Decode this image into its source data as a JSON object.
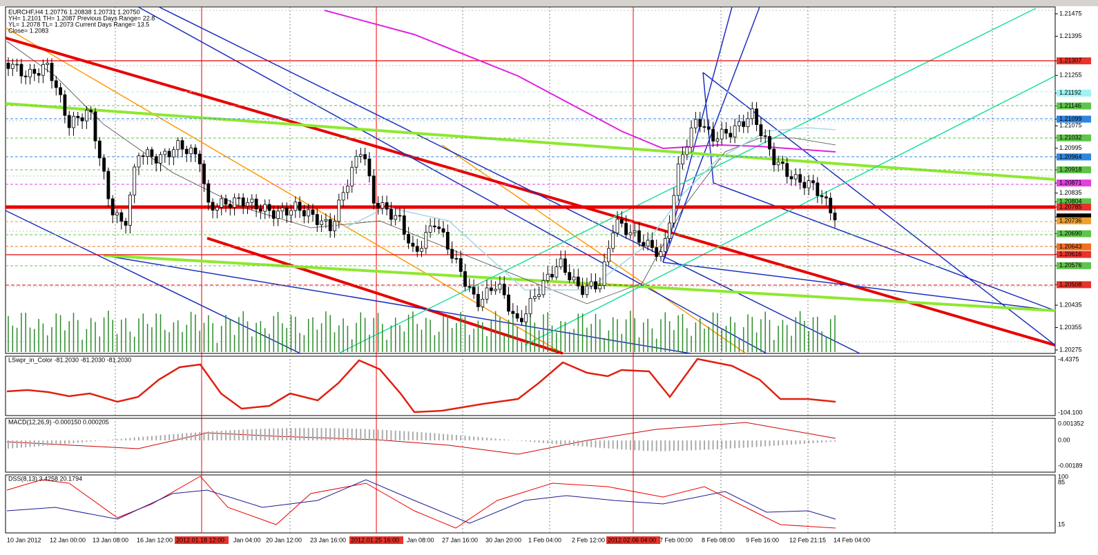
{
  "header": {
    "symbol_line": "EURCHF,H4  1.20776 1.20838 1.20731 1.20750",
    "line2": "YH= 1.2101  TH= 1.2087    Previous Days Range= 22.8",
    "line3": "YL= 1.2078  TL= 1.2073    Current Days Range= 13.5",
    "line4": "Close= 1.2083"
  },
  "price_axis": {
    "ylim": [
      1.20275,
      1.21475
    ],
    "yticks": [
      1.21475,
      1.21395,
      1.21307,
      1.21255,
      {
        "value": 1.21192,
        "label": "1.21192"
      },
      1.21146,
      1.21099,
      1.21075,
      1.21032,
      1.20995,
      1.20964,
      1.20918,
      1.20871,
      1.20835,
      1.20804,
      1.20785,
      {
        "value": 1.2075,
        "label": "1.20750"
      },
      1.20736,
      {
        "value": 1.2069,
        "label": "1.20690"
      },
      1.20643,
      1.20616,
      1.20576,
      {
        "value": 1.20508,
        "label": "1.20508"
      },
      1.20435,
      1.20355,
      1.20275
    ],
    "box_colors": [
      null,
      null,
      "#e8322a",
      null,
      "#9ff3f3",
      "#5fc44a",
      "#2f86e0",
      null,
      "#5fc44a",
      null,
      "#2f86e0",
      "#5fc44a",
      "#e040e0",
      null,
      "#5fc44a",
      "#e8322a",
      "#000000",
      "#f0a030",
      "#5fc44a",
      "#f07020",
      "#e8322a",
      "#5fc44a",
      "#e8322a",
      null,
      null,
      null
    ]
  },
  "time_axis": [
    "10 Jan 2012",
    "12 Jan 00:00",
    "13 Jan 08:00",
    "16 Jan 12:00",
    "2012.01.18 12:00",
    "Jan 04:00",
    "20 Jan 12:00",
    "23 Jan 16:00",
    "2012.01.25 16:00",
    "Jan 08:00",
    "27 Jan 16:00",
    "30 Jan 20:00",
    "1 Feb 04:00",
    "2 Feb 12:00",
    "2012.02.06 04:00",
    "7 Feb 00:00",
    "8 Feb 08:00",
    "9 Feb 16:00",
    "12 Feb 21:15",
    "14 Feb 04:00"
  ],
  "panels": [
    {
      "title": "LSwpr_in_Color -81.2030 -81.2030 -81.2030",
      "labels": [
        "-4.4375",
        "-104.100"
      ]
    },
    {
      "title": "MACD(12,26,9) -0.000150 0.000205",
      "labels": [
        "0.001352",
        "0.00",
        "-0.00189"
      ]
    },
    {
      "title": "DSS(8,13) 3.4258 20.1794",
      "labels": [
        "100",
        "85",
        "15"
      ]
    }
  ]
}
